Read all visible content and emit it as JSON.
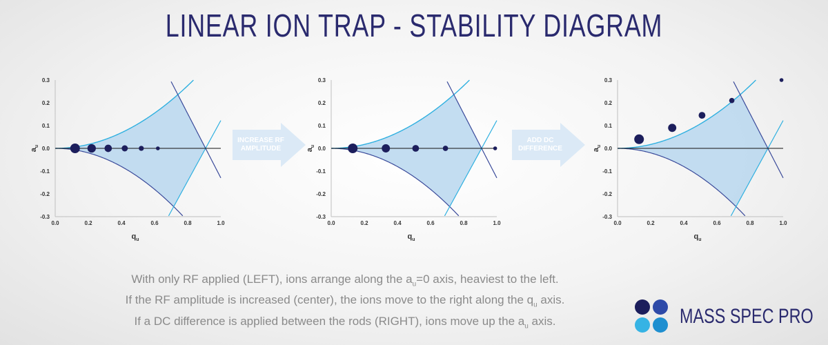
{
  "title": "LINEAR ION TRAP - STABILITY DIAGRAM",
  "arrows": [
    {
      "line1": "INCREASE RF",
      "line2": "AMPLITUDE"
    },
    {
      "line1": "ADD DC",
      "line2": "DIFFERENCE"
    }
  ],
  "caption": {
    "line1_a": "With only RF applied (LEFT), ions arrange along the a",
    "line1_sub": "u",
    "line1_b": "=0 axis, heaviest to the left.",
    "line2_a": "If the RF amplitude is increased (center), the ions move to the right along the q",
    "line2_sub": "u",
    "line2_b": " axis.",
    "line3_a": "If a DC difference is applied between the rods (RIGHT), ions move up the a",
    "line3_sub": "u",
    "line3_b": " axis."
  },
  "brand": "MASS SPEC PRO",
  "colors": {
    "title": "#2a2a6e",
    "region_fill": "#b8d7ee",
    "line_light": "#2fb0e0",
    "line_dark": "#3a4a9a",
    "ion": "#1c1e5c",
    "arrow": "#dbe9f6",
    "logo": [
      "#1c1e5c",
      "#2e4aa8",
      "#36b3e4",
      "#1f8fd0"
    ]
  },
  "chart_data": [
    {
      "type": "scatter",
      "xlabel": "q",
      "xlabel_sub": "u",
      "ylabel": "a",
      "ylabel_sub": "u",
      "xlim": [
        0.0,
        1.0
      ],
      "ylim": [
        -0.3,
        0.3
      ],
      "xticks": [
        "0.0",
        "0.2",
        "0.4",
        "0.6",
        "0.8",
        "1.0"
      ],
      "yticks": [
        "0.3",
        "0.2",
        "0.1",
        "0.0",
        "-0.1",
        "-0.2",
        "-0.3"
      ],
      "points": [
        [
          0.12,
          0.0
        ],
        [
          0.22,
          0.0
        ],
        [
          0.32,
          0.0
        ],
        [
          0.42,
          0.0
        ],
        [
          0.52,
          0.0
        ],
        [
          0.62,
          0.0
        ]
      ]
    },
    {
      "type": "scatter",
      "xlabel": "q",
      "xlabel_sub": "u",
      "ylabel": "a",
      "ylabel_sub": "u",
      "xlim": [
        0.0,
        1.0
      ],
      "ylim": [
        -0.3,
        0.3
      ],
      "xticks": [
        "0.0",
        "0.2",
        "0.4",
        "0.6",
        "0.8",
        "1.0"
      ],
      "yticks": [
        "0.3",
        "0.2",
        "0.1",
        "0.0",
        "-0.1",
        "-0.2",
        "-0.3"
      ],
      "points": [
        [
          0.13,
          0.0
        ],
        [
          0.33,
          0.0
        ],
        [
          0.51,
          0.0
        ],
        [
          0.69,
          0.0
        ],
        [
          0.99,
          0.0
        ]
      ]
    },
    {
      "type": "scatter",
      "xlabel": "q",
      "xlabel_sub": "u",
      "ylabel": "a",
      "ylabel_sub": "u",
      "xlim": [
        0.0,
        1.0
      ],
      "ylim": [
        -0.3,
        0.3
      ],
      "xticks": [
        "0.0",
        "0.2",
        "0.4",
        "0.6",
        "0.8",
        "1.0"
      ],
      "yticks": [
        "0.3",
        "0.2",
        "0.1",
        "0.0",
        "-0.1",
        "-0.2",
        "-0.3"
      ],
      "points": [
        [
          0.13,
          0.04
        ],
        [
          0.33,
          0.09
        ],
        [
          0.51,
          0.145
        ],
        [
          0.69,
          0.21
        ],
        [
          0.99,
          0.3
        ]
      ]
    }
  ]
}
